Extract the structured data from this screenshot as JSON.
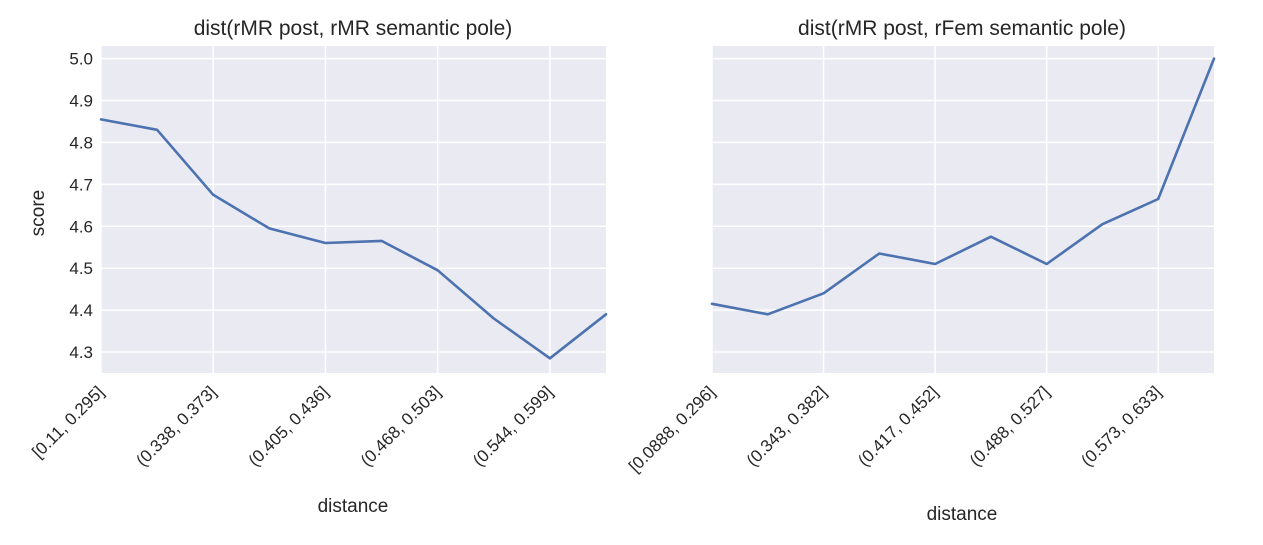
{
  "chart_data": [
    {
      "type": "line",
      "title": "dist(rMR post, rMR semantic pole)",
      "xlabel": "distance",
      "ylabel": "score",
      "ylim": [
        4.25,
        5.03
      ],
      "yticks": [
        "4.3",
        "4.4",
        "4.5",
        "4.6",
        "4.7",
        "4.8",
        "4.9",
        "5.0"
      ],
      "x_tick_labels": [
        "[0.11, 0.295]",
        "(0.338, 0.373]",
        "(0.405, 0.436]",
        "(0.468, 0.503]",
        "(0.544, 0.599]"
      ],
      "grid": true,
      "series": [
        {
          "values": [
            4.855,
            4.83,
            4.675,
            4.595,
            4.56,
            4.565,
            4.495,
            4.38,
            4.285,
            4.39
          ]
        }
      ],
      "color": "#4c72b0"
    },
    {
      "type": "line",
      "title": "dist(rMR post, rFem semantic pole)",
      "xlabel": "distance",
      "ylabel": "",
      "ylim": [
        4.25,
        5.03
      ],
      "x_tick_labels": [
        "[0.0888, 0.296]",
        "(0.343, 0.382]",
        "(0.417, 0.452]",
        "(0.488, 0.527]",
        "(0.573, 0.633]"
      ],
      "grid": true,
      "series": [
        {
          "values": [
            4.415,
            4.39,
            4.44,
            4.535,
            4.51,
            4.575,
            4.51,
            4.605,
            4.665,
            5.0
          ]
        }
      ],
      "color": "#4c72b0"
    }
  ]
}
